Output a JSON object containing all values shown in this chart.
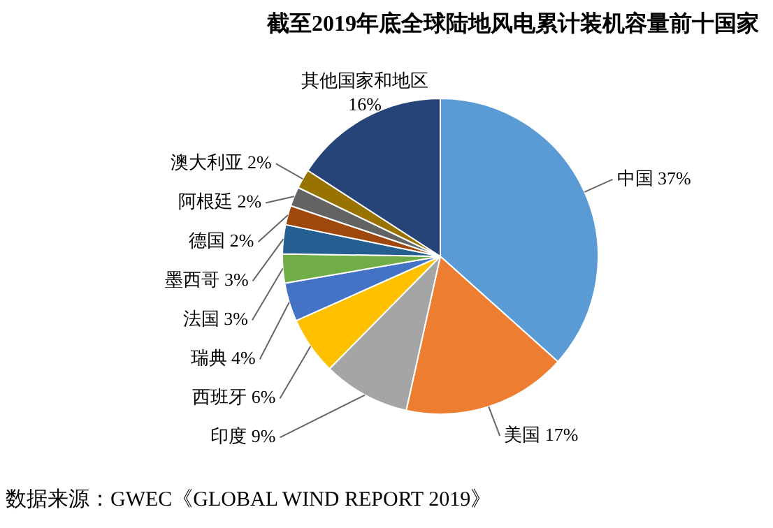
{
  "chart_data": {
    "type": "pie",
    "title": "截至2019年底全球陆地风电累计装机容量前十国家",
    "categories": [
      "中国",
      "美国",
      "印度",
      "西班牙",
      "瑞典",
      "法国",
      "墨西哥",
      "德国",
      "阿根廷",
      "澳大利亚",
      "其他国家和地区"
    ],
    "values": [
      37,
      17,
      9,
      6,
      4,
      3,
      3,
      2,
      2,
      2,
      16
    ],
    "value_labels": [
      "37%",
      "17%",
      "9%",
      "6%",
      "4%",
      "3%",
      "3%",
      "2%",
      "2%",
      "2%",
      "16%"
    ],
    "colors": [
      "#5b9bd5",
      "#ed7d31",
      "#a5a5a5",
      "#ffc000",
      "#4472c4",
      "#70ad47",
      "#255e91",
      "#9e480e",
      "#636363",
      "#997300",
      "#264478"
    ],
    "legend": false,
    "annotations": [
      "数据来源：GWEC《GLOBAL WIND REPORT 2019》"
    ]
  }
}
